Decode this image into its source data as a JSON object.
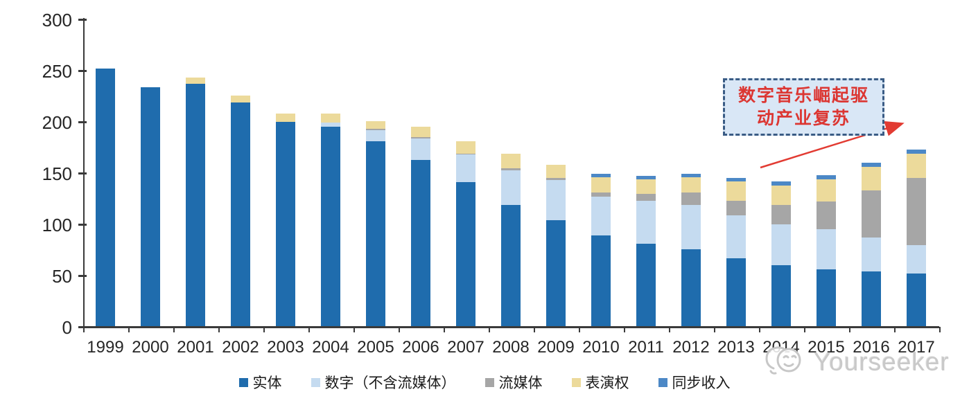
{
  "annotation": {
    "line1": "数字音乐崛起驱",
    "line2": "动产业复苏",
    "text_color": "#DC3632",
    "border_color": "#3A5C85",
    "fill_color": "#D9E7F6",
    "arrow_color": "#E23B32"
  },
  "watermark": {
    "text": "Yourseeker",
    "color": "#C9C9C9"
  },
  "chart_data": {
    "type": "bar",
    "stacked": true,
    "title": "",
    "xlabel": "",
    "ylabel": "",
    "ylim": [
      0,
      300
    ],
    "yticks": [
      0,
      50,
      100,
      150,
      200,
      250,
      300
    ],
    "grid": false,
    "legend_position": "bottom",
    "categories": [
      "1999",
      "2000",
      "2001",
      "2002",
      "2003",
      "2004",
      "2005",
      "2006",
      "2007",
      "2008",
      "2009",
      "2010",
      "2011",
      "2012",
      "2013",
      "2014",
      "2015",
      "2016",
      "2017"
    ],
    "series": [
      {
        "key": "physical",
        "name": "实体",
        "color": "#1F6CAD",
        "values": [
          252,
          234,
          237,
          219,
          200,
          195,
          181,
          163,
          141,
          119,
          104,
          89,
          81,
          76,
          67,
          60,
          56,
          54,
          52
        ]
      },
      {
        "key": "digital-excl-streaming",
        "name": "数字（不含流媒体）",
        "color": "#C5DBF0",
        "values": [
          0,
          0,
          0,
          0,
          0,
          4,
          11,
          21,
          27,
          34,
          39,
          38,
          42,
          43,
          42,
          40,
          39,
          33,
          28
        ]
      },
      {
        "key": "streaming",
        "name": "流媒体",
        "color": "#A6A6A6",
        "values": [
          0,
          0,
          0,
          0,
          0,
          0,
          1,
          1,
          1,
          2,
          2,
          4,
          7,
          12,
          14,
          19,
          27,
          46,
          65
        ]
      },
      {
        "key": "performance-rights",
        "name": "表演权",
        "color": "#ECDA9B",
        "values": [
          0,
          0,
          6,
          7,
          8,
          9,
          8,
          10,
          12,
          14,
          13,
          15,
          14,
          15,
          19,
          19,
          22,
          23,
          24
        ]
      },
      {
        "key": "sync",
        "name": "同步收入",
        "color": "#4C88C6",
        "values": [
          0,
          0,
          0,
          0,
          0,
          0,
          0,
          0,
          0,
          0,
          0,
          3,
          3,
          3,
          3,
          4,
          4,
          4,
          4
        ]
      }
    ],
    "totals": [
      252,
      234,
      243,
      226,
      208,
      208,
      201,
      195,
      181,
      169,
      158,
      149,
      147,
      149,
      145,
      142,
      148,
      160,
      173
    ]
  }
}
